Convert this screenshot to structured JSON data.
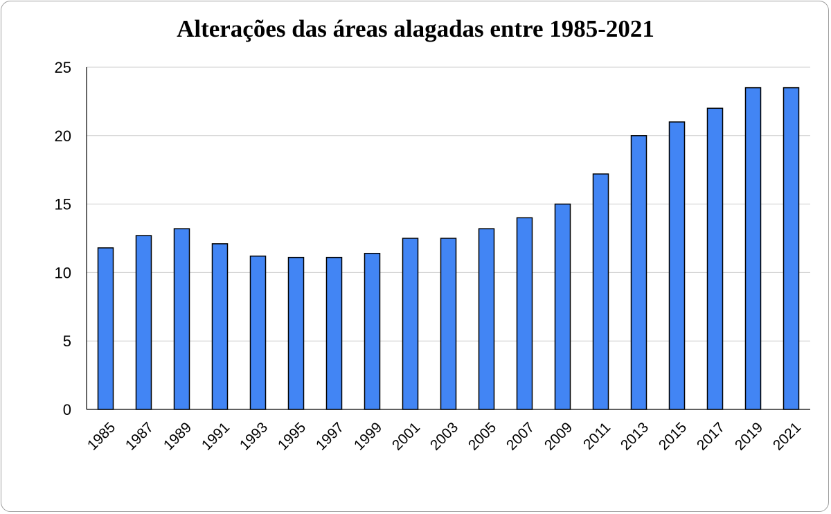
{
  "chart_data": {
    "type": "bar",
    "title": "Alterações das áreas alagadas entre 1985-2021",
    "xlabel": "",
    "ylabel": "",
    "categories": [
      "1985",
      "1987",
      "1989",
      "1991",
      "1993",
      "1995",
      "1997",
      "1999",
      "2001",
      "2003",
      "2005",
      "2007",
      "2009",
      "2011",
      "2013",
      "2015",
      "2017",
      "2019",
      "2021"
    ],
    "values": [
      11.8,
      12.7,
      13.2,
      12.1,
      11.2,
      11.1,
      11.1,
      11.4,
      12.5,
      12.5,
      13.2,
      14.0,
      15.0,
      17.2,
      20.0,
      21.0,
      22.0,
      23.5,
      23.5
    ],
    "ylim": [
      0,
      25
    ],
    "yticks": [
      "0",
      "5",
      "10",
      "15",
      "20",
      "25"
    ],
    "grid": true,
    "legend": "none",
    "colors": {
      "bar": "#4285f4",
      "bar_stroke": "#000000",
      "grid": "#cccccc",
      "axis": "#000000"
    }
  }
}
